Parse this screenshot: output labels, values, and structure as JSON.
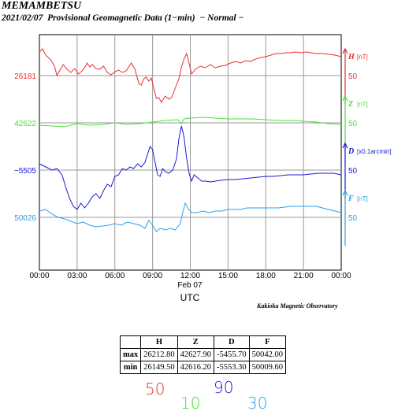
{
  "header": {
    "station": "MEMAMBETSU",
    "subtitle": "2021/02/07  Provisional Geomagnetic Data (1−min)  − Normal −"
  },
  "chart_data": {
    "type": "line",
    "x_tick_labels": [
      "00:00",
      "03:00",
      "06:00",
      "09:00",
      "12:00",
      "15:00",
      "18:00",
      "21:00",
      "00:00"
    ],
    "date_label": "Feb 07",
    "xlabel": "UTC",
    "grid": true,
    "series": [
      {
        "name": "H",
        "unit": "[nT]",
        "scale": "50",
        "base_label": "26181",
        "color": "#e8302e",
        "points": [
          [
            0,
            66
          ],
          [
            0.25,
            62
          ],
          [
            0.5,
            70
          ],
          [
            0.9,
            76
          ],
          [
            1.2,
            84
          ],
          [
            1.4,
            96
          ],
          [
            1.6,
            90
          ],
          [
            1.9,
            82
          ],
          [
            2.2,
            88
          ],
          [
            2.5,
            92
          ],
          [
            2.8,
            87
          ],
          [
            3.1,
            94
          ],
          [
            3.4,
            90
          ],
          [
            3.6,
            86
          ],
          [
            3.8,
            80
          ],
          [
            4.0,
            85
          ],
          [
            4.2,
            82
          ],
          [
            4.5,
            87
          ],
          [
            4.8,
            88
          ],
          [
            5.1,
            84
          ],
          [
            5.4,
            92
          ],
          [
            5.7,
            95
          ],
          [
            6.0,
            91
          ],
          [
            6.3,
            89
          ],
          [
            6.6,
            92
          ],
          [
            6.9,
            90
          ],
          [
            7.1,
            85
          ],
          [
            7.3,
            80
          ],
          [
            7.6,
            88
          ],
          [
            7.9,
            106
          ],
          [
            8.1,
            108
          ],
          [
            8.3,
            100
          ],
          [
            8.5,
            98
          ],
          [
            8.7,
            103
          ],
          [
            8.9,
            99
          ],
          [
            9.1,
            112
          ],
          [
            9.3,
            125
          ],
          [
            9.5,
            124
          ],
          [
            9.7,
            130
          ],
          [
            10.0,
            122
          ],
          [
            10.3,
            126
          ],
          [
            10.5,
            124
          ],
          [
            10.7,
            116
          ],
          [
            10.9,
            108
          ],
          [
            11.1,
            100
          ],
          [
            11.3,
            85
          ],
          [
            11.5,
            75
          ],
          [
            11.7,
            68
          ],
          [
            11.9,
            80
          ],
          [
            12.1,
            94
          ],
          [
            12.4,
            88
          ],
          [
            12.8,
            84
          ],
          [
            13.2,
            86
          ],
          [
            13.6,
            82
          ],
          [
            14.0,
            86
          ],
          [
            14.4,
            84
          ],
          [
            14.8,
            83
          ],
          [
            15.2,
            80
          ],
          [
            15.6,
            78
          ],
          [
            16.0,
            80
          ],
          [
            16.4,
            77
          ],
          [
            16.8,
            78
          ],
          [
            17.2,
            75
          ],
          [
            17.6,
            73
          ],
          [
            18.0,
            72
          ],
          [
            18.4,
            70
          ],
          [
            18.8,
            68
          ],
          [
            19.2,
            68
          ],
          [
            19.6,
            67
          ],
          [
            20.0,
            67
          ],
          [
            20.4,
            66
          ],
          [
            20.8,
            67
          ],
          [
            21.2,
            66
          ],
          [
            21.6,
            67
          ],
          [
            22.0,
            68
          ],
          [
            22.5,
            68
          ],
          [
            23.0,
            69
          ],
          [
            23.5,
            70
          ],
          [
            24.0,
            72
          ]
        ]
      },
      {
        "name": "Z",
        "unit": "[nT]",
        "scale": "50",
        "base_label": "42622",
        "color": "#49e03a",
        "points": [
          [
            0,
            159
          ],
          [
            1,
            160
          ],
          [
            2,
            161
          ],
          [
            3,
            157
          ],
          [
            4,
            159
          ],
          [
            5,
            158
          ],
          [
            6,
            156
          ],
          [
            7,
            158
          ],
          [
            8,
            157
          ],
          [
            9,
            155
          ],
          [
            10,
            153
          ],
          [
            11,
            152
          ],
          [
            11.3,
            157
          ],
          [
            11.5,
            151
          ],
          [
            12,
            150
          ],
          [
            13,
            149
          ],
          [
            14,
            150
          ],
          [
            15,
            151
          ],
          [
            16,
            151
          ],
          [
            17,
            151
          ],
          [
            18,
            152
          ],
          [
            19,
            153
          ],
          [
            20,
            153
          ],
          [
            21,
            154
          ],
          [
            22,
            155
          ],
          [
            23,
            157
          ],
          [
            24,
            158
          ]
        ]
      },
      {
        "name": "D",
        "unit": "[x0.1arcmin]",
        "scale": "50",
        "base_label": "−5505",
        "color": "#1a1ad6",
        "points": [
          [
            0,
            208
          ],
          [
            0.5,
            212
          ],
          [
            1,
            216
          ],
          [
            1.4,
            214
          ],
          [
            1.8,
            222
          ],
          [
            2.1,
            238
          ],
          [
            2.4,
            252
          ],
          [
            2.7,
            262
          ],
          [
            3.0,
            266
          ],
          [
            3.3,
            258
          ],
          [
            3.6,
            264
          ],
          [
            3.9,
            258
          ],
          [
            4.2,
            250
          ],
          [
            4.5,
            246
          ],
          [
            4.8,
            252
          ],
          [
            5.1,
            242
          ],
          [
            5.4,
            234
          ],
          [
            5.7,
            237
          ],
          [
            6.0,
            224
          ],
          [
            6.3,
            222
          ],
          [
            6.6,
            214
          ],
          [
            6.9,
            216
          ],
          [
            7.2,
            212
          ],
          [
            7.5,
            214
          ],
          [
            7.8,
            208
          ],
          [
            8.1,
            212
          ],
          [
            8.4,
            206
          ],
          [
            8.6,
            196
          ],
          [
            8.8,
            186
          ],
          [
            9.0,
            190
          ],
          [
            9.2,
            206
          ],
          [
            9.4,
            222
          ],
          [
            9.6,
            224
          ],
          [
            9.8,
            214
          ],
          [
            10.0,
            218
          ],
          [
            10.3,
            220
          ],
          [
            10.6,
            216
          ],
          [
            10.9,
            202
          ],
          [
            11.1,
            176
          ],
          [
            11.3,
            160
          ],
          [
            11.5,
            174
          ],
          [
            11.7,
            200
          ],
          [
            11.9,
            220
          ],
          [
            12.1,
            230
          ],
          [
            12.3,
            222
          ],
          [
            12.6,
            226
          ],
          [
            12.9,
            230
          ],
          [
            13.2,
            230
          ],
          [
            13.6,
            231
          ],
          [
            14.0,
            230
          ],
          [
            14.4,
            229
          ],
          [
            15.0,
            228
          ],
          [
            15.6,
            228
          ],
          [
            16.2,
            227
          ],
          [
            16.8,
            226
          ],
          [
            17.4,
            225
          ],
          [
            18.0,
            224
          ],
          [
            18.6,
            224
          ],
          [
            19.2,
            223
          ],
          [
            19.8,
            222
          ],
          [
            20.4,
            222
          ],
          [
            21.0,
            222
          ],
          [
            21.6,
            221
          ],
          [
            22.2,
            220
          ],
          [
            22.8,
            220
          ],
          [
            23.4,
            220
          ],
          [
            24.0,
            222
          ]
        ]
      },
      {
        "name": "F",
        "unit": "[nT]",
        "scale": "50",
        "base_label": "50026",
        "color": "#2aa0e8",
        "points": [
          [
            0,
            268
          ],
          [
            0.5,
            266
          ],
          [
            1,
            272
          ],
          [
            1.5,
            276
          ],
          [
            2,
            278
          ],
          [
            2.5,
            281
          ],
          [
            3,
            284
          ],
          [
            3.5,
            282
          ],
          [
            4,
            286
          ],
          [
            4.5,
            288
          ],
          [
            5,
            287
          ],
          [
            5.5,
            286
          ],
          [
            6,
            284
          ],
          [
            6.5,
            286
          ],
          [
            7,
            282
          ],
          [
            7.5,
            284
          ],
          [
            8,
            286
          ],
          [
            8.4,
            290
          ],
          [
            8.7,
            280
          ],
          [
            9.0,
            286
          ],
          [
            9.3,
            294
          ],
          [
            9.6,
            290
          ],
          [
            10.0,
            292
          ],
          [
            10.4,
            290
          ],
          [
            10.8,
            292
          ],
          [
            11.2,
            284
          ],
          [
            11.4,
            270
          ],
          [
            11.6,
            258
          ],
          [
            11.8,
            264
          ],
          [
            12.1,
            270
          ],
          [
            12.5,
            270
          ],
          [
            13,
            268
          ],
          [
            13.5,
            270
          ],
          [
            14,
            268
          ],
          [
            14.5,
            268
          ],
          [
            15,
            266
          ],
          [
            15.5,
            266
          ],
          [
            16,
            266
          ],
          [
            16.5,
            264
          ],
          [
            17,
            264
          ],
          [
            17.5,
            264
          ],
          [
            18,
            264
          ],
          [
            18.5,
            264
          ],
          [
            19,
            264
          ],
          [
            19.5,
            263
          ],
          [
            20,
            262
          ],
          [
            20.5,
            262
          ],
          [
            21,
            262
          ],
          [
            21.5,
            262
          ],
          [
            22,
            262
          ],
          [
            22.5,
            264
          ],
          [
            23,
            266
          ],
          [
            23.5,
            268
          ],
          [
            24,
            270
          ]
        ]
      }
    ]
  },
  "footer": {
    "source": "Kakioka Magnetic Observatory"
  },
  "stats_table": {
    "headers": [
      "",
      "H",
      "Z",
      "D",
      "F"
    ],
    "rows": [
      [
        "max",
        "26212.80",
        "42627.90",
        "-5455.70",
        "50042.00"
      ],
      [
        "min",
        "26149.50",
        "42616.20",
        "-5553.30",
        "50009.60"
      ]
    ]
  },
  "scale_notes": {
    "h": "50",
    "z": "10",
    "d": "90",
    "f": "30"
  }
}
